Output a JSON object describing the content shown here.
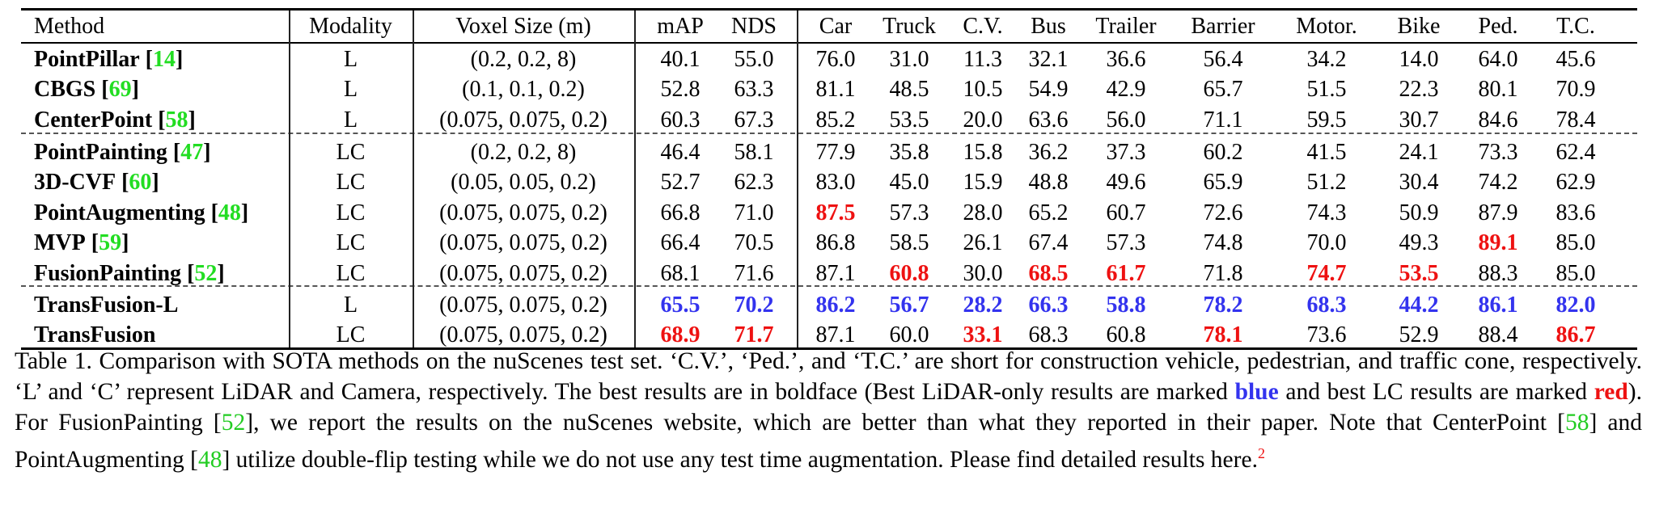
{
  "table": {
    "columns": [
      "Method",
      "Modality",
      "Voxel Size (m)",
      "mAP",
      "NDS",
      "Car",
      "Truck",
      "C.V.",
      "Bus",
      "Trailer",
      "Barrier",
      "Motor.",
      "Bike",
      "Ped.",
      "T.C."
    ],
    "rows": [
      {
        "method": "PointPillar",
        "ref": "14",
        "modality": "L",
        "voxel": "(0.2, 0.2, 8)",
        "values": [
          "40.1",
          "55.0",
          "76.0",
          "31.0",
          "11.3",
          "32.1",
          "36.6",
          "56.4",
          "34.2",
          "14.0",
          "64.0",
          "45.6"
        ],
        "highlight": [
          "",
          "",
          "",
          "",
          "",
          "",
          "",
          "",
          "",
          "",
          "",
          ""
        ]
      },
      {
        "method": "CBGS",
        "ref": "69",
        "modality": "L",
        "voxel": "(0.1, 0.1, 0.2)",
        "values": [
          "52.8",
          "63.3",
          "81.1",
          "48.5",
          "10.5",
          "54.9",
          "42.9",
          "65.7",
          "51.5",
          "22.3",
          "80.1",
          "70.9"
        ],
        "highlight": [
          "",
          "",
          "",
          "",
          "",
          "",
          "",
          "",
          "",
          "",
          "",
          ""
        ]
      },
      {
        "method": "CenterPoint",
        "ref": "58",
        "modality": "L",
        "voxel": "(0.075, 0.075, 0.2)",
        "values": [
          "60.3",
          "67.3",
          "85.2",
          "53.5",
          "20.0",
          "63.6",
          "56.0",
          "71.1",
          "59.5",
          "30.7",
          "84.6",
          "78.4"
        ],
        "highlight": [
          "",
          "",
          "",
          "",
          "",
          "",
          "",
          "",
          "",
          "",
          "",
          ""
        ]
      },
      {
        "method": "PointPainting",
        "ref": "47",
        "modality": "LC",
        "voxel": "(0.2, 0.2, 8)",
        "values": [
          "46.4",
          "58.1",
          "77.9",
          "35.8",
          "15.8",
          "36.2",
          "37.3",
          "60.2",
          "41.5",
          "24.1",
          "73.3",
          "62.4"
        ],
        "highlight": [
          "",
          "",
          "",
          "",
          "",
          "",
          "",
          "",
          "",
          "",
          "",
          ""
        ]
      },
      {
        "method": "3D-CVF",
        "ref": "60",
        "modality": "LC",
        "voxel": "(0.05, 0.05, 0.2)",
        "values": [
          "52.7",
          "62.3",
          "83.0",
          "45.0",
          "15.9",
          "48.8",
          "49.6",
          "65.9",
          "51.2",
          "30.4",
          "74.2",
          "62.9"
        ],
        "highlight": [
          "",
          "",
          "",
          "",
          "",
          "",
          "",
          "",
          "",
          "",
          "",
          ""
        ]
      },
      {
        "method": "PointAugmenting",
        "ref": "48",
        "modality": "LC",
        "voxel": "(0.075, 0.075, 0.2)",
        "values": [
          "66.8",
          "71.0",
          "87.5",
          "57.3",
          "28.0",
          "65.2",
          "60.7",
          "72.6",
          "74.3",
          "50.9",
          "87.9",
          "83.6"
        ],
        "highlight": [
          "",
          "",
          "red",
          "",
          "",
          "",
          "",
          "",
          "",
          "",
          "",
          ""
        ]
      },
      {
        "method": "MVP",
        "ref": "59",
        "modality": "LC",
        "voxel": "(0.075, 0.075, 0.2)",
        "values": [
          "66.4",
          "70.5",
          "86.8",
          "58.5",
          "26.1",
          "67.4",
          "57.3",
          "74.8",
          "70.0",
          "49.3",
          "89.1",
          "85.0"
        ],
        "highlight": [
          "",
          "",
          "",
          "",
          "",
          "",
          "",
          "",
          "",
          "",
          "red",
          ""
        ]
      },
      {
        "method": "FusionPainting",
        "ref": "52",
        "modality": "LC",
        "voxel": "(0.075, 0.075, 0.2)",
        "values": [
          "68.1",
          "71.6",
          "87.1",
          "60.8",
          "30.0",
          "68.5",
          "61.7",
          "71.8",
          "74.7",
          "53.5",
          "88.3",
          "85.0"
        ],
        "highlight": [
          "",
          "",
          "",
          "red",
          "",
          "red",
          "red",
          "",
          "red",
          "red",
          "",
          ""
        ]
      },
      {
        "method": "TransFusion-L",
        "ref": "",
        "modality": "L",
        "voxel": "(0.075, 0.075, 0.2)",
        "values": [
          "65.5",
          "70.2",
          "86.2",
          "56.7",
          "28.2",
          "66.3",
          "58.8",
          "78.2",
          "68.3",
          "44.2",
          "86.1",
          "82.0"
        ],
        "highlight": [
          "blue",
          "blue",
          "blue",
          "blue",
          "blue",
          "blue",
          "blue",
          "blue",
          "blue",
          "blue",
          "blue",
          "blue"
        ]
      },
      {
        "method": "TransFusion",
        "ref": "",
        "modality": "LC",
        "voxel": "(0.075, 0.075, 0.2)",
        "values": [
          "68.9",
          "71.7",
          "87.1",
          "60.0",
          "33.1",
          "68.3",
          "60.8",
          "78.1",
          "73.6",
          "52.9",
          "88.4",
          "86.7"
        ],
        "highlight": [
          "red",
          "red",
          "",
          "",
          "red",
          "",
          "",
          "red",
          "",
          "",
          "",
          "red"
        ]
      }
    ]
  },
  "caption": {
    "p1": "Table 1. Comparison with SOTA methods on the nuScenes test set. ‘C.V.’, ‘Ped.’, and ‘T.C.’ are short for construction vehicle, pedestrian, and traffic cone, respectively. ‘L’ and ‘C’ represent LiDAR and Camera, respectively. The best results are in boldface (Best LiDAR-only results are marked ",
    "blue": "blue",
    "p2": " and best LC results are marked ",
    "red": "red",
    "p3": "). For FusionPainting [",
    "ref52": "52",
    "p4": "], we report the results on the nuScenes website, which are better than what they reported in their paper. Note that CenterPoint [",
    "ref58": "58",
    "p5": "] and PointAugmenting [",
    "ref48": "48",
    "p6": "] utilize double-flip testing while we do not use any test time augmentation. Please find detailed results here.",
    "footnote": "2"
  },
  "colors": {
    "best_lidar": "#3333ee",
    "best_lc": "#ee1111",
    "citation": "#22dd22"
  }
}
